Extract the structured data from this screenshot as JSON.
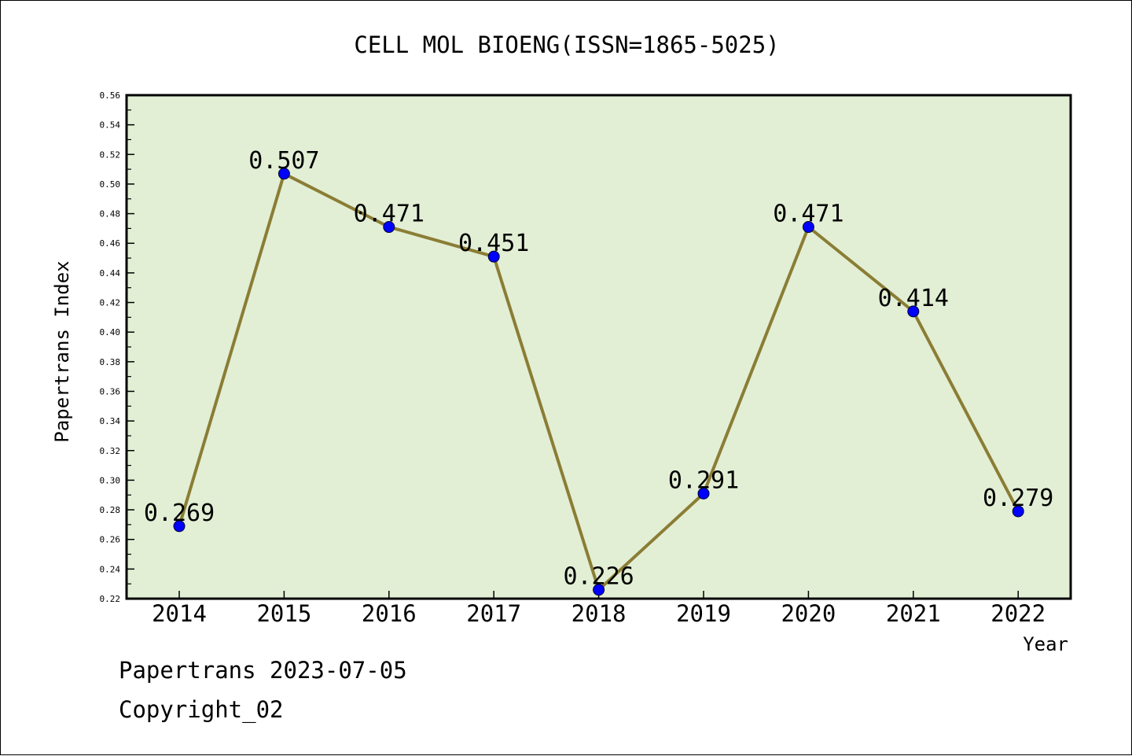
{
  "chart_data": {
    "type": "line",
    "title": "CELL MOL BIOENG(ISSN=1865-5025)",
    "xlabel": "Year",
    "ylabel": "Papertrans Index",
    "categories": [
      "2014",
      "2015",
      "2016",
      "2017",
      "2018",
      "2019",
      "2020",
      "2021",
      "2022"
    ],
    "series": [
      {
        "values": [
          0.269,
          0.507,
          0.471,
          0.451,
          0.226,
          0.291,
          0.471,
          0.414,
          0.279
        ]
      }
    ],
    "data_labels": [
      "0.269",
      "0.507",
      "0.471",
      "0.451",
      "0.226",
      "0.291",
      "0.471",
      "0.414",
      "0.279"
    ],
    "ylim": [
      0.22,
      0.56
    ],
    "ytick_labels": [
      "0.22",
      "0.24",
      "0.26",
      "0.28",
      "0.30",
      "0.32",
      "0.34",
      "0.36",
      "0.38",
      "0.40",
      "0.42",
      "0.44",
      "0.46",
      "0.48",
      "0.50",
      "0.52",
      "0.54",
      "0.56"
    ],
    "grid": false,
    "legend": "none",
    "colors": {
      "plot_background": "#e2efd5",
      "line": "#8b7d35",
      "marker": "#0000ff"
    }
  },
  "footer": {
    "line1": "Papertrans 2023-07-05",
    "line2": "Copyright_02"
  }
}
